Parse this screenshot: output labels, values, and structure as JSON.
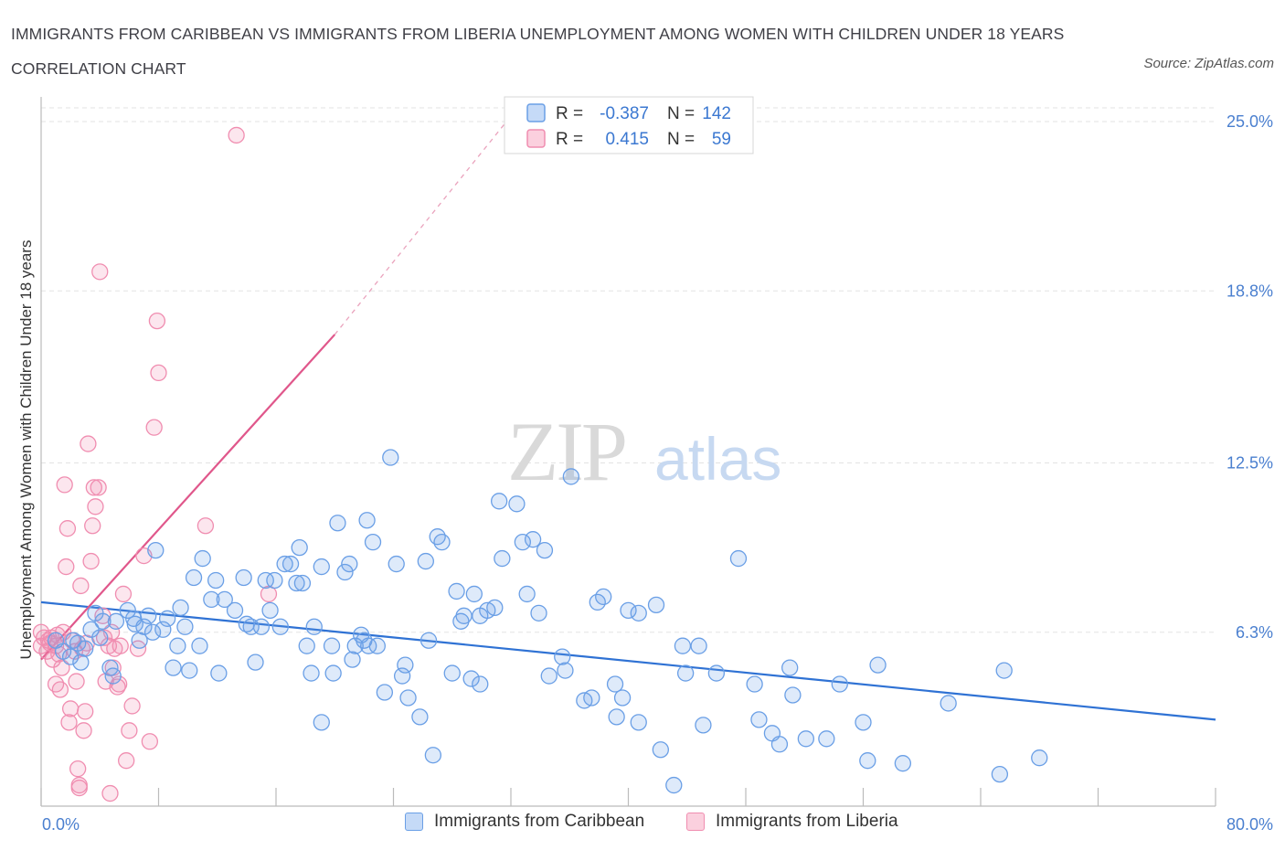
{
  "title": "IMMIGRANTS FROM CARIBBEAN VS IMMIGRANTS FROM LIBERIA UNEMPLOYMENT AMONG WOMEN WITH CHILDREN UNDER 18 YEARS CORRELATION CHART",
  "source": "Source: ZipAtlas.com",
  "watermark": {
    "zip": "ZIP",
    "atlas": "atlas"
  },
  "colors": {
    "caribbean": "#6a9fe6",
    "liberia": "#f08db0",
    "caribbean_line": "#2f72d4",
    "liberia_line": "#e0578b",
    "tick_label": "#4a7fcf"
  },
  "legend_top": [
    {
      "r_label": "R =",
      "r_value": "-0.387",
      "n_label": "N =",
      "n_value": "142"
    },
    {
      "r_label": "R =",
      "r_value": "0.415",
      "n_label": "N =",
      "n_value": "59"
    }
  ],
  "chart_data": {
    "type": "scatter",
    "title": "IMMIGRANTS FROM CARIBBEAN VS IMMIGRANTS FROM LIBERIA UNEMPLOYMENT AMONG WOMEN WITH CHILDREN UNDER 18 YEARS CORRELATION CHART",
    "xlabel": "",
    "ylabel": "Unemployment Among Women with Children Under 18 years",
    "xlim": [
      0,
      80
    ],
    "ylim": [
      0,
      25.0
    ],
    "x_tick_labels": [
      "0.0%",
      "80.0%"
    ],
    "y_tick_values": [
      6.3,
      12.5,
      18.8,
      25.0
    ],
    "y_tick_labels": [
      "6.3%",
      "12.5%",
      "18.8%",
      "25.0%"
    ],
    "grid": true,
    "legend_position": "bottom",
    "series": [
      {
        "name": "Immigrants from Caribbean",
        "trend": {
          "x": [
            0,
            80
          ],
          "y": [
            7.4,
            3.1
          ],
          "style": "solid"
        },
        "points": [
          [
            1.0,
            6.0
          ],
          [
            1.5,
            5.6
          ],
          [
            2.0,
            5.4
          ],
          [
            2.2,
            6.0
          ],
          [
            2.5,
            5.9
          ],
          [
            2.7,
            5.2
          ],
          [
            3.0,
            5.7
          ],
          [
            3.4,
            6.4
          ],
          [
            3.7,
            7.0
          ],
          [
            4.0,
            6.1
          ],
          [
            4.2,
            6.7
          ],
          [
            4.7,
            5.0
          ],
          [
            4.9,
            4.7
          ],
          [
            5.1,
            6.7
          ],
          [
            5.9,
            7.1
          ],
          [
            6.3,
            6.8
          ],
          [
            6.4,
            6.6
          ],
          [
            6.7,
            6.0
          ],
          [
            7.0,
            6.5
          ],
          [
            7.3,
            6.9
          ],
          [
            7.6,
            6.3
          ],
          [
            7.8,
            9.3
          ],
          [
            8.3,
            6.4
          ],
          [
            8.6,
            6.8
          ],
          [
            9.0,
            5.0
          ],
          [
            9.3,
            5.8
          ],
          [
            9.5,
            7.2
          ],
          [
            9.8,
            6.5
          ],
          [
            10.1,
            4.9
          ],
          [
            10.4,
            8.3
          ],
          [
            10.8,
            5.8
          ],
          [
            11.0,
            9.0
          ],
          [
            11.6,
            7.5
          ],
          [
            11.9,
            8.2
          ],
          [
            12.1,
            4.8
          ],
          [
            12.5,
            7.5
          ],
          [
            13.2,
            7.1
          ],
          [
            13.8,
            8.3
          ],
          [
            14.0,
            6.6
          ],
          [
            14.3,
            6.5
          ],
          [
            14.6,
            5.2
          ],
          [
            15.0,
            6.5
          ],
          [
            15.3,
            8.2
          ],
          [
            15.6,
            7.1
          ],
          [
            15.9,
            8.2
          ],
          [
            16.3,
            6.5
          ],
          [
            16.6,
            8.8
          ],
          [
            17.0,
            8.8
          ],
          [
            17.4,
            8.1
          ],
          [
            17.6,
            9.4
          ],
          [
            17.8,
            8.1
          ],
          [
            18.1,
            5.8
          ],
          [
            18.4,
            4.8
          ],
          [
            18.6,
            6.5
          ],
          [
            19.1,
            8.7
          ],
          [
            19.1,
            3.0
          ],
          [
            19.8,
            5.8
          ],
          [
            19.9,
            4.8
          ],
          [
            20.2,
            10.3
          ],
          [
            20.7,
            8.5
          ],
          [
            21.0,
            8.8
          ],
          [
            21.2,
            5.3
          ],
          [
            21.4,
            5.8
          ],
          [
            21.8,
            6.2
          ],
          [
            22.0,
            6.0
          ],
          [
            22.3,
            5.8
          ],
          [
            22.2,
            10.4
          ],
          [
            22.6,
            9.6
          ],
          [
            22.9,
            5.8
          ],
          [
            23.4,
            4.1
          ],
          [
            23.8,
            12.7
          ],
          [
            24.2,
            8.8
          ],
          [
            24.6,
            4.7
          ],
          [
            24.8,
            5.1
          ],
          [
            25.0,
            3.9
          ],
          [
            25.8,
            3.2
          ],
          [
            26.2,
            8.9
          ],
          [
            26.4,
            6.0
          ],
          [
            26.7,
            1.8
          ],
          [
            27.0,
            9.8
          ],
          [
            27.3,
            9.6
          ],
          [
            28.0,
            4.8
          ],
          [
            28.3,
            7.8
          ],
          [
            28.6,
            6.7
          ],
          [
            28.8,
            6.9
          ],
          [
            29.3,
            4.6
          ],
          [
            29.5,
            7.7
          ],
          [
            29.9,
            6.9
          ],
          [
            29.9,
            4.4
          ],
          [
            30.4,
            7.1
          ],
          [
            30.9,
            7.2
          ],
          [
            31.2,
            11.1
          ],
          [
            31.4,
            9.0
          ],
          [
            32.4,
            11.0
          ],
          [
            32.8,
            9.6
          ],
          [
            33.1,
            7.7
          ],
          [
            33.5,
            9.7
          ],
          [
            33.9,
            7.0
          ],
          [
            34.3,
            9.3
          ],
          [
            34.6,
            4.7
          ],
          [
            35.5,
            5.4
          ],
          [
            35.7,
            4.9
          ],
          [
            36.1,
            12.0
          ],
          [
            37.0,
            3.8
          ],
          [
            37.5,
            3.9
          ],
          [
            37.9,
            7.4
          ],
          [
            38.3,
            7.6
          ],
          [
            39.1,
            4.4
          ],
          [
            39.2,
            3.2
          ],
          [
            39.6,
            3.9
          ],
          [
            40.0,
            7.1
          ],
          [
            40.7,
            7.0
          ],
          [
            40.7,
            3.0
          ],
          [
            41.9,
            7.3
          ],
          [
            42.2,
            2.0
          ],
          [
            43.1,
            0.7
          ],
          [
            43.7,
            5.8
          ],
          [
            43.9,
            4.8
          ],
          [
            44.8,
            5.8
          ],
          [
            45.1,
            2.9
          ],
          [
            46.0,
            4.8
          ],
          [
            47.5,
            9.0
          ],
          [
            48.6,
            4.4
          ],
          [
            48.9,
            3.1
          ],
          [
            49.8,
            2.6
          ],
          [
            50.3,
            2.2
          ],
          [
            51.0,
            5.0
          ],
          [
            51.2,
            4.0
          ],
          [
            52.1,
            2.4
          ],
          [
            53.5,
            2.4
          ],
          [
            54.4,
            4.4
          ],
          [
            56.0,
            3.0
          ],
          [
            56.3,
            1.6
          ],
          [
            57.0,
            5.1
          ],
          [
            58.7,
            1.5
          ],
          [
            61.8,
            3.7
          ],
          [
            65.3,
            1.1
          ],
          [
            65.6,
            4.9
          ],
          [
            68.0,
            1.7
          ]
        ]
      },
      {
        "name": "Immigrants from Liberia",
        "trend": {
          "x": [
            0,
            20.0,
            31.7
          ],
          "y": [
            5.3,
            17.2,
            25.0
          ],
          "style": "solid-then-dashed"
        },
        "points": [
          [
            0.0,
            6.3
          ],
          [
            0.0,
            5.8
          ],
          [
            0.2,
            6.1
          ],
          [
            0.4,
            5.6
          ],
          [
            0.5,
            6.0
          ],
          [
            0.6,
            5.9
          ],
          [
            0.7,
            6.1
          ],
          [
            0.8,
            5.3
          ],
          [
            1.0,
            5.8
          ],
          [
            1.0,
            4.4
          ],
          [
            1.1,
            6.2
          ],
          [
            1.2,
            5.5
          ],
          [
            1.3,
            4.2
          ],
          [
            1.4,
            5.0
          ],
          [
            1.5,
            6.3
          ],
          [
            1.6,
            11.7
          ],
          [
            1.7,
            8.7
          ],
          [
            1.8,
            10.1
          ],
          [
            1.9,
            3.0
          ],
          [
            2.0,
            3.5
          ],
          [
            2.1,
            6.0
          ],
          [
            2.3,
            5.6
          ],
          [
            2.4,
            4.5
          ],
          [
            2.5,
            1.3
          ],
          [
            2.6,
            0.6
          ],
          [
            2.6,
            0.7
          ],
          [
            2.7,
            8.0
          ],
          [
            2.8,
            5.7
          ],
          [
            2.9,
            2.7
          ],
          [
            3.0,
            3.4
          ],
          [
            3.1,
            5.9
          ],
          [
            3.2,
            13.2
          ],
          [
            3.4,
            8.9
          ],
          [
            3.5,
            10.2
          ],
          [
            3.6,
            11.6
          ],
          [
            3.7,
            10.9
          ],
          [
            3.9,
            11.6
          ],
          [
            4.0,
            19.5
          ],
          [
            4.2,
            6.9
          ],
          [
            4.3,
            6.1
          ],
          [
            4.4,
            4.5
          ],
          [
            4.6,
            5.8
          ],
          [
            4.7,
            0.4
          ],
          [
            4.8,
            6.3
          ],
          [
            4.9,
            5.0
          ],
          [
            5.0,
            5.7
          ],
          [
            5.2,
            4.3
          ],
          [
            5.3,
            4.4
          ],
          [
            5.4,
            5.8
          ],
          [
            5.6,
            7.7
          ],
          [
            5.8,
            1.6
          ],
          [
            6.0,
            2.7
          ],
          [
            6.2,
            3.6
          ],
          [
            6.6,
            5.7
          ],
          [
            7.0,
            9.1
          ],
          [
            7.4,
            2.3
          ],
          [
            7.7,
            13.8
          ],
          [
            7.9,
            17.7
          ],
          [
            8.0,
            15.8
          ],
          [
            11.2,
            10.2
          ],
          [
            13.3,
            24.5
          ],
          [
            15.5,
            7.7
          ]
        ]
      }
    ]
  },
  "legend_bottom": [
    "Immigrants from Caribbean",
    "Immigrants from Liberia"
  ]
}
